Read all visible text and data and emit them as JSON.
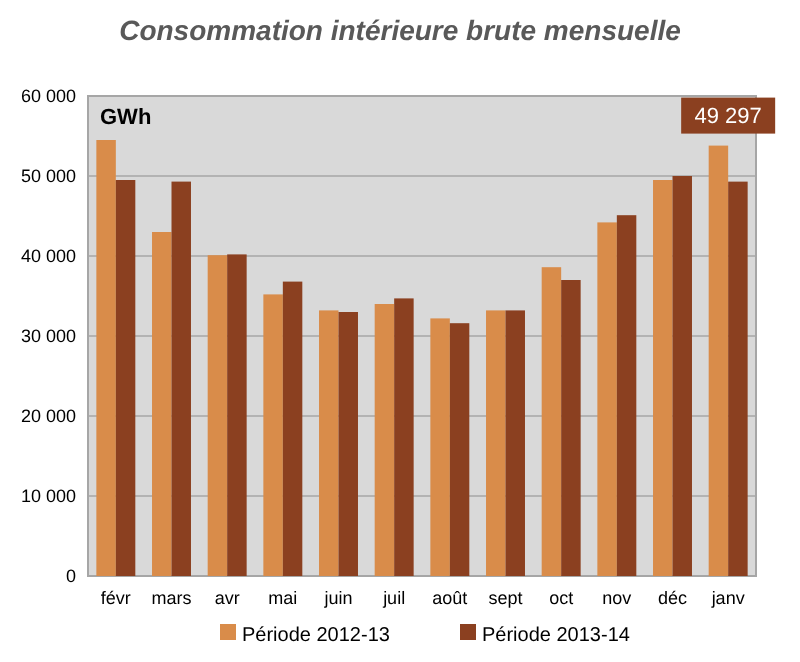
{
  "chart_data": {
    "type": "bar",
    "title": "Consommation intérieure brute mensuelle",
    "ylabel": "GWh",
    "categories": [
      "févr",
      "mars",
      "avr",
      "mai",
      "juin",
      "juil",
      "août",
      "sept",
      "oct",
      "nov",
      "déc",
      "janv"
    ],
    "series": [
      {
        "name": "Période 2012-13",
        "color": "#d98c4a",
        "values": [
          54500,
          43000,
          40100,
          35200,
          33200,
          34000,
          32200,
          33200,
          38600,
          44200,
          49500,
          53800
        ]
      },
      {
        "name": "Période 2013-14",
        "color": "#8b4020",
        "values": [
          49500,
          49300,
          40200,
          36800,
          33000,
          34700,
          31600,
          33200,
          37000,
          45100,
          50000,
          49297
        ],
        "value_labels": [
          null,
          null,
          null,
          null,
          null,
          null,
          null,
          null,
          null,
          null,
          null,
          "49 297"
        ]
      }
    ],
    "ylim": [
      0,
      60000
    ],
    "yticks": [
      {
        "value": 0,
        "label": "0"
      },
      {
        "value": 10000,
        "label": "10 000"
      },
      {
        "value": 20000,
        "label": "20 000"
      },
      {
        "value": 30000,
        "label": "30 000"
      },
      {
        "value": 40000,
        "label": "40 000"
      },
      {
        "value": 50000,
        "label": "50 000"
      },
      {
        "value": 60000,
        "label": "60 000"
      }
    ],
    "grid": "y",
    "legend": "bottom"
  }
}
